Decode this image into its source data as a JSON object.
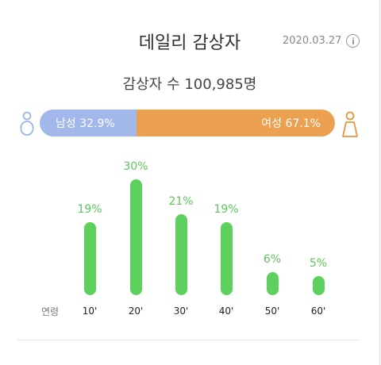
{
  "header": {
    "title": "데일리 감상자",
    "date": "2020.03.27",
    "info_icon": "info-icon"
  },
  "summary": {
    "viewers_text": "감상자 수 100,985명"
  },
  "gender": {
    "male": {
      "label": "남성 32.9%",
      "value": 32.9,
      "color": "#a3b8ea",
      "icon": "male-person-icon"
    },
    "female": {
      "label": "여성 67.1%",
      "value": 67.1,
      "color": "#eca150",
      "icon": "female-person-icon"
    }
  },
  "chart_data": {
    "type": "bar",
    "xlabel": "연령",
    "ylabel": "",
    "categories": [
      "10'",
      "20'",
      "30'",
      "40'",
      "50'",
      "60'"
    ],
    "values": [
      19,
      30,
      21,
      19,
      6,
      5
    ],
    "value_labels": [
      "19%",
      "30%",
      "21%",
      "19%",
      "6%",
      "5%"
    ],
    "unit": "%",
    "ylim": [
      0,
      30
    ],
    "color": "#5ed05e",
    "label_color": "#5cc65c",
    "grid": false,
    "legend": "none"
  }
}
